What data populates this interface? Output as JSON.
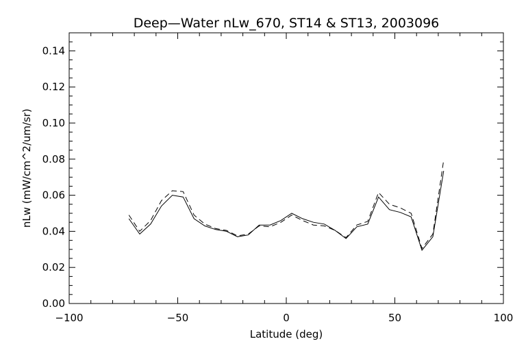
{
  "chart_data": {
    "type": "line",
    "title": "Deep—Water nLw_670, ST14 & ST13, 2003096",
    "xlabel": "Latitude (deg)",
    "ylabel": "nLw (mW/cm^2/um/sr)",
    "xlim": [
      -100,
      100
    ],
    "ylim": [
      0.0,
      0.15
    ],
    "x_ticks": [
      "−100",
      "−50",
      "0",
      "50",
      "100"
    ],
    "x_tick_values": [
      -100,
      -50,
      0,
      50,
      100
    ],
    "y_ticks": [
      "0.00",
      "0.02",
      "0.04",
      "0.06",
      "0.08",
      "0.10",
      "0.12",
      "0.14"
    ],
    "y_tick_values": [
      0.0,
      0.02,
      0.04,
      0.06,
      0.08,
      0.1,
      0.12,
      0.14
    ],
    "grid": false,
    "series": [
      {
        "style": "solid",
        "color": "#000000",
        "x": [
          -72.5,
          -67.5,
          -62.5,
          -57.5,
          -52.5,
          -47.5,
          -42.5,
          -37.5,
          -32.5,
          -27.5,
          -22.5,
          -17.5,
          -12.5,
          -7.5,
          -2.5,
          2.5,
          7.5,
          12.5,
          17.5,
          22.5,
          27.5,
          32.5,
          37.5,
          42.5,
          47.5,
          52.5,
          57.5,
          62.5,
          67.5,
          72.5
        ],
        "y": [
          0.047,
          0.0385,
          0.044,
          0.054,
          0.06,
          0.059,
          0.047,
          0.043,
          0.041,
          0.04,
          0.037,
          0.038,
          0.0435,
          0.0435,
          0.046,
          0.05,
          0.047,
          0.045,
          0.044,
          0.0405,
          0.036,
          0.0425,
          0.044,
          0.059,
          0.052,
          0.0505,
          0.048,
          0.0295,
          0.037,
          0.0735
        ]
      },
      {
        "style": "dashed",
        "color": "#000000",
        "x": [
          -72.5,
          -67.5,
          -62.5,
          -57.5,
          -52.5,
          -47.5,
          -42.5,
          -37.5,
          -32.5,
          -27.5,
          -22.5,
          -17.5,
          -12.5,
          -7.5,
          -2.5,
          2.5,
          7.5,
          12.5,
          17.5,
          22.5,
          27.5,
          32.5,
          37.5,
          42.5,
          47.5,
          52.5,
          57.5,
          62.5,
          67.5,
          72.5
        ],
        "y": [
          0.049,
          0.04,
          0.046,
          0.057,
          0.0625,
          0.062,
          0.049,
          0.044,
          0.0415,
          0.0405,
          0.0375,
          0.0385,
          0.043,
          0.0425,
          0.045,
          0.049,
          0.046,
          0.0435,
          0.043,
          0.0405,
          0.0365,
          0.0435,
          0.0455,
          0.0615,
          0.055,
          0.053,
          0.05,
          0.0305,
          0.0385,
          0.0795
        ]
      }
    ]
  }
}
